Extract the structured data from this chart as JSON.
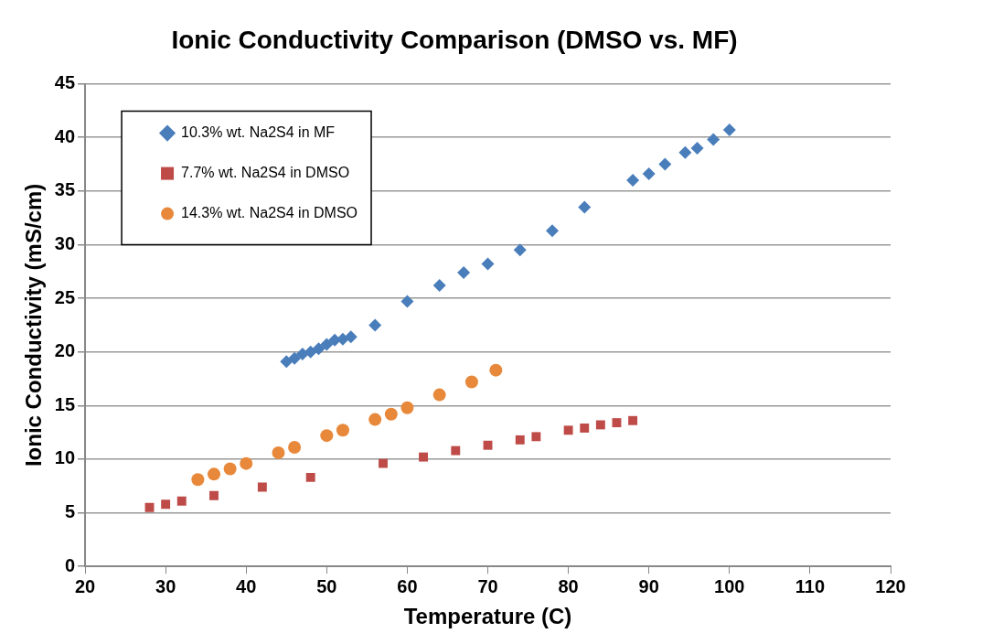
{
  "chart_data": {
    "type": "scatter",
    "title": "Ionic Conductivity Comparison (DMSO vs. MF)",
    "xlabel": "Temperature (C)",
    "ylabel": "Ionic Conductivity (mS/cm)",
    "xlim": [
      20,
      120
    ],
    "xticks": [
      20,
      30,
      40,
      50,
      60,
      70,
      80,
      90,
      100,
      110,
      120
    ],
    "ylim": [
      0,
      45
    ],
    "yticks": [
      0,
      5,
      10,
      15,
      20,
      25,
      30,
      35,
      40,
      45
    ],
    "grid": "y",
    "legend": "top left",
    "series": [
      {
        "name": "10.3% wt. Na2S4 in MF",
        "color": "#4a7ebb",
        "marker": "diamond",
        "x": [
          45,
          46,
          47,
          48,
          49,
          50,
          51,
          52,
          53,
          56,
          60,
          64,
          67,
          70,
          74,
          78,
          82,
          88,
          90,
          92,
          94.5,
          96,
          98,
          100
        ],
        "values": [
          19.1,
          19.4,
          19.8,
          20.0,
          20.3,
          20.7,
          21.1,
          21.2,
          21.4,
          22.5,
          24.7,
          26.2,
          27.4,
          28.2,
          29.5,
          31.3,
          33.5,
          36.0,
          36.6,
          37.5,
          38.6,
          39.0,
          39.8,
          40.7
        ]
      },
      {
        "name": "7.7% wt. Na2S4 in DMSO",
        "color": "#be4b48",
        "marker": "square",
        "x": [
          28,
          30,
          32,
          36,
          42,
          48,
          57,
          62,
          66,
          70,
          74,
          76,
          80,
          82,
          84,
          86,
          88
        ],
        "values": [
          5.5,
          5.8,
          6.1,
          6.6,
          7.4,
          8.3,
          9.6,
          10.2,
          10.8,
          11.3,
          11.8,
          12.1,
          12.7,
          12.9,
          13.2,
          13.4,
          13.6
        ]
      },
      {
        "name": "14.3% wt. Na2S4 in DMSO",
        "color": "#e8883a",
        "marker": "circle",
        "x": [
          34,
          36,
          38,
          40,
          44,
          46,
          50,
          52,
          56,
          58,
          60,
          64,
          68,
          71
        ],
        "values": [
          8.1,
          8.6,
          9.1,
          9.6,
          10.6,
          11.1,
          12.2,
          12.7,
          13.7,
          14.2,
          14.8,
          16.0,
          17.2,
          18.3
        ]
      }
    ]
  }
}
